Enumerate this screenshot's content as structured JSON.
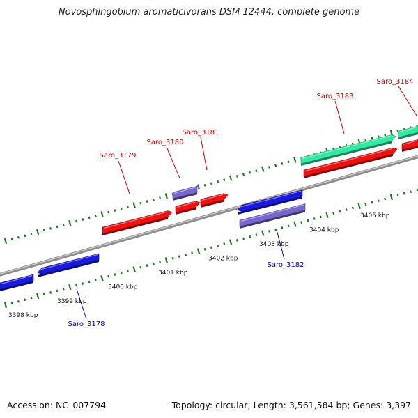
{
  "title": "Novosphingobium aromaticivorans DSM 12444, complete genome",
  "footer": {
    "accession": "Accession: NC_007794",
    "summary": "Topology: circular; Length: 3,561,584 bp; Genes: 3,397"
  },
  "colors": {
    "backbone": "#8c8c8c",
    "tick": "#1a7a1a",
    "forward_gene": "#ee1111",
    "reverse_gene": "#1a1adf",
    "rna_gene": "#33e8a0",
    "other_gene": "#7766cc",
    "forward_label": "#cc0000",
    "reverse_label": "#0000bb"
  },
  "scale_labels": [
    "3398 kbp",
    "3399 kbp",
    "3400 kbp",
    "3401 kbp",
    "3402 kbp",
    "3403 kbp",
    "3404 kbp",
    "3405 kbp"
  ],
  "gene_labels": {
    "forward": [
      "Saro_3179",
      "Saro_3180",
      "Saro_3181",
      "Saro_3183",
      "Saro_3184"
    ],
    "reverse": [
      "Saro_3178",
      "Saro_3182"
    ]
  }
}
